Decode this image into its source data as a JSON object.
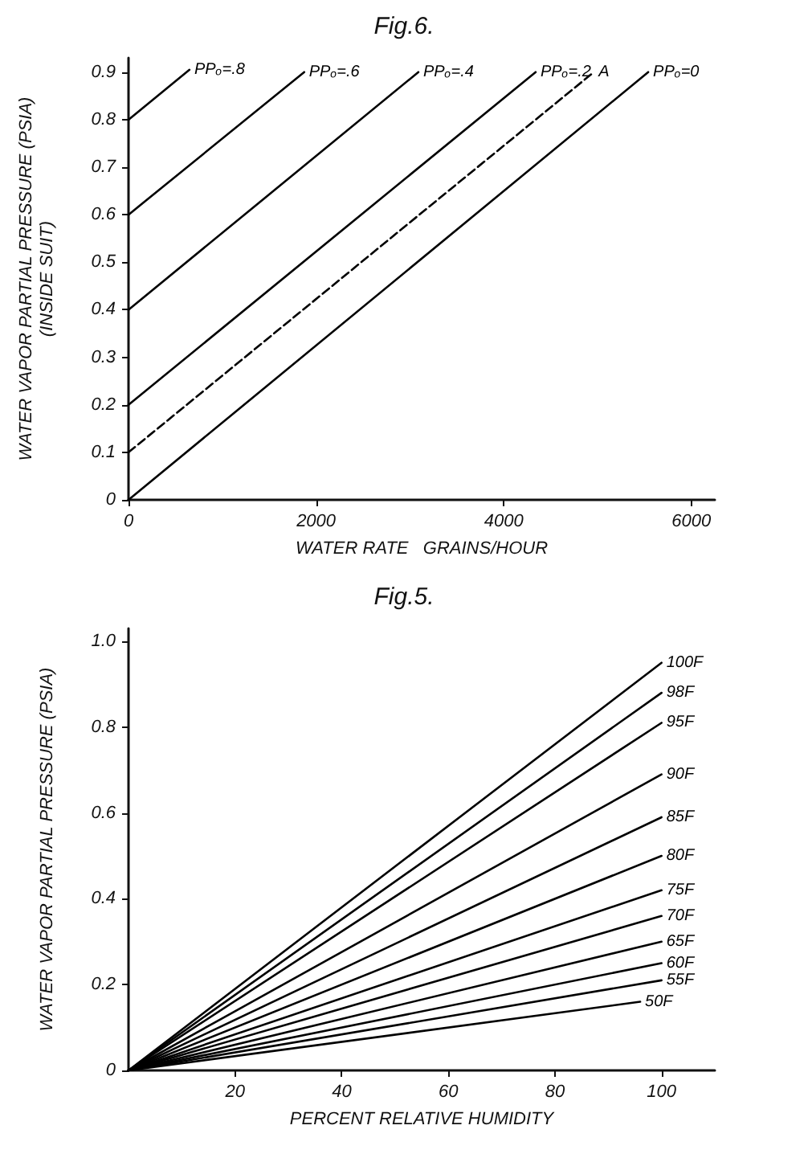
{
  "chart_data": [
    {
      "type": "line",
      "title": "Fig.6.",
      "xlabel": "WATER RATE   GRAINS/HOUR",
      "ylabel": "WATER VAPOR PARTIAL PRESSURE (PSIA)\n(INSIDE SUIT)",
      "xlim": [
        0,
        6250
      ],
      "xticks": [
        0,
        2000,
        4000,
        6000
      ],
      "ylim": [
        0,
        0.93
      ],
      "yticks": [
        0,
        0.1,
        0.2,
        0.3,
        0.4,
        0.5,
        0.6,
        0.7,
        0.8,
        0.9
      ],
      "grid": false,
      "legend": false,
      "marker": "none",
      "series": [
        {
          "name": "PPₒ=.8",
          "color": "#000000",
          "x": [
            0,
            650
          ],
          "values": [
            0.8,
            0.905
          ],
          "line_style": "solid"
        },
        {
          "name": "PPₒ=.6",
          "color": "#000000",
          "x": [
            0,
            1873
          ],
          "values": [
            0.6,
            0.9
          ],
          "line_style": "solid"
        },
        {
          "name": "PPₒ=.4",
          "color": "#000000",
          "x": [
            0,
            3090
          ],
          "values": [
            0.4,
            0.9
          ],
          "line_style": "solid"
        },
        {
          "name": "PPₒ=.2",
          "color": "#000000",
          "x": [
            0,
            4340
          ],
          "values": [
            0.2,
            0.9
          ],
          "line_style": "solid"
        },
        {
          "name": "A",
          "color": "#000000",
          "x": [
            0,
            4960
          ],
          "values": [
            0.1,
            0.9
          ],
          "line_style": "dashed"
        },
        {
          "name": "PPₒ=0",
          "color": "#000000",
          "x": [
            0,
            5540
          ],
          "values": [
            0,
            0.9
          ],
          "line_style": "solid"
        }
      ]
    },
    {
      "type": "line",
      "title": "Fig.5.",
      "xlabel": "PERCENT RELATIVE HUMIDITY",
      "ylabel": "WATER VAPOR PARTIAL PRESSURE (PSIA)",
      "xlim": [
        0,
        110
      ],
      "xticks": [
        20,
        40,
        60,
        80,
        100
      ],
      "ylim": [
        0,
        1.03
      ],
      "yticks": [
        0,
        0.2,
        0.4,
        0.6,
        0.8,
        {
          "value": 1,
          "label": "1.0"
        }
      ],
      "grid": false,
      "legend": false,
      "marker": "none",
      "series": [
        {
          "name": "100F",
          "color": "#000000",
          "x": [
            0,
            100
          ],
          "values": [
            0,
            0.95
          ],
          "line_style": "solid"
        },
        {
          "name": "98F",
          "color": "#000000",
          "x": [
            0,
            100
          ],
          "values": [
            0,
            0.88
          ],
          "line_style": "solid"
        },
        {
          "name": "95F",
          "color": "#000000",
          "x": [
            0,
            100
          ],
          "values": [
            0,
            0.81
          ],
          "line_style": "solid"
        },
        {
          "name": "90F",
          "color": "#000000",
          "x": [
            0,
            100
          ],
          "values": [
            0,
            0.69
          ],
          "line_style": "solid"
        },
        {
          "name": "85F",
          "color": "#000000",
          "x": [
            0,
            100
          ],
          "values": [
            0,
            0.59
          ],
          "line_style": "solid"
        },
        {
          "name": "80F",
          "color": "#000000",
          "x": [
            0,
            100
          ],
          "values": [
            0,
            0.5
          ],
          "line_style": "solid"
        },
        {
          "name": "75F",
          "color": "#000000",
          "x": [
            0,
            100
          ],
          "values": [
            0,
            0.42
          ],
          "line_style": "solid"
        },
        {
          "name": "70F",
          "color": "#000000",
          "x": [
            0,
            100
          ],
          "values": [
            0,
            0.36
          ],
          "line_style": "solid"
        },
        {
          "name": "65F",
          "color": "#000000",
          "x": [
            0,
            100
          ],
          "values": [
            0,
            0.3
          ],
          "line_style": "solid"
        },
        {
          "name": "60F",
          "color": "#000000",
          "x": [
            0,
            100
          ],
          "values": [
            0,
            0.25
          ],
          "line_style": "solid"
        },
        {
          "name": "55F",
          "color": "#000000",
          "x": [
            0,
            100
          ],
          "values": [
            0,
            0.21
          ],
          "line_style": "solid"
        },
        {
          "name": "50F",
          "color": "#000000",
          "x": [
            0,
            96
          ],
          "values": [
            0,
            0.16
          ],
          "line_style": "solid"
        }
      ]
    }
  ]
}
